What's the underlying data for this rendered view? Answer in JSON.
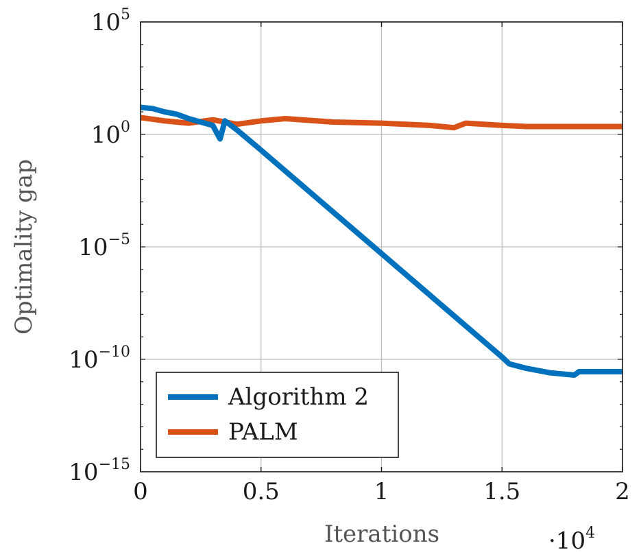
{
  "chart_data": {
    "type": "line",
    "title": "",
    "xlabel": "Iterations",
    "ylabel": "Optimality gap",
    "x_multiplier": {
      "base": "·10",
      "exp": "4"
    },
    "xlim": [
      0,
      2
    ],
    "ylim_log10": [
      -15,
      5
    ],
    "y_scale": "log",
    "x_ticks": [
      "0",
      "0.5",
      "1",
      "1.5",
      "2"
    ],
    "y_ticks": [
      {
        "base": "10",
        "exp": "5"
      },
      {
        "base": "10",
        "exp": "0"
      },
      {
        "base": "10",
        "exp": "−5"
      },
      {
        "base": "10",
        "exp": "−10"
      },
      {
        "base": "10",
        "exp": "−15"
      }
    ],
    "grid": true,
    "legend_position": "bottom-left",
    "series": [
      {
        "name": "Algorithm 2",
        "color": "#0072BD",
        "x": [
          0,
          0.05,
          0.1,
          0.15,
          0.2,
          0.25,
          0.3,
          0.33,
          0.35,
          0.4,
          0.5,
          0.75,
          1.0,
          1.25,
          1.5,
          1.53,
          1.6,
          1.7,
          1.8,
          1.82,
          1.9,
          2.0
        ],
        "log10_y": [
          1.2,
          1.15,
          1.0,
          0.9,
          0.7,
          0.55,
          0.4,
          -0.2,
          0.6,
          0.2,
          -0.7,
          -3.0,
          -5.3,
          -7.6,
          -9.9,
          -10.2,
          -10.4,
          -10.6,
          -10.7,
          -10.55,
          -10.55,
          -10.55
        ]
      },
      {
        "name": "PALM",
        "color": "#D95319",
        "x": [
          0,
          0.1,
          0.2,
          0.3,
          0.4,
          0.5,
          0.6,
          0.8,
          1.0,
          1.2,
          1.3,
          1.35,
          1.5,
          1.6,
          1.8,
          2.0
        ],
        "log10_y": [
          0.75,
          0.6,
          0.5,
          0.65,
          0.45,
          0.6,
          0.7,
          0.55,
          0.5,
          0.4,
          0.3,
          0.5,
          0.4,
          0.35,
          0.35,
          0.35
        ]
      }
    ]
  }
}
